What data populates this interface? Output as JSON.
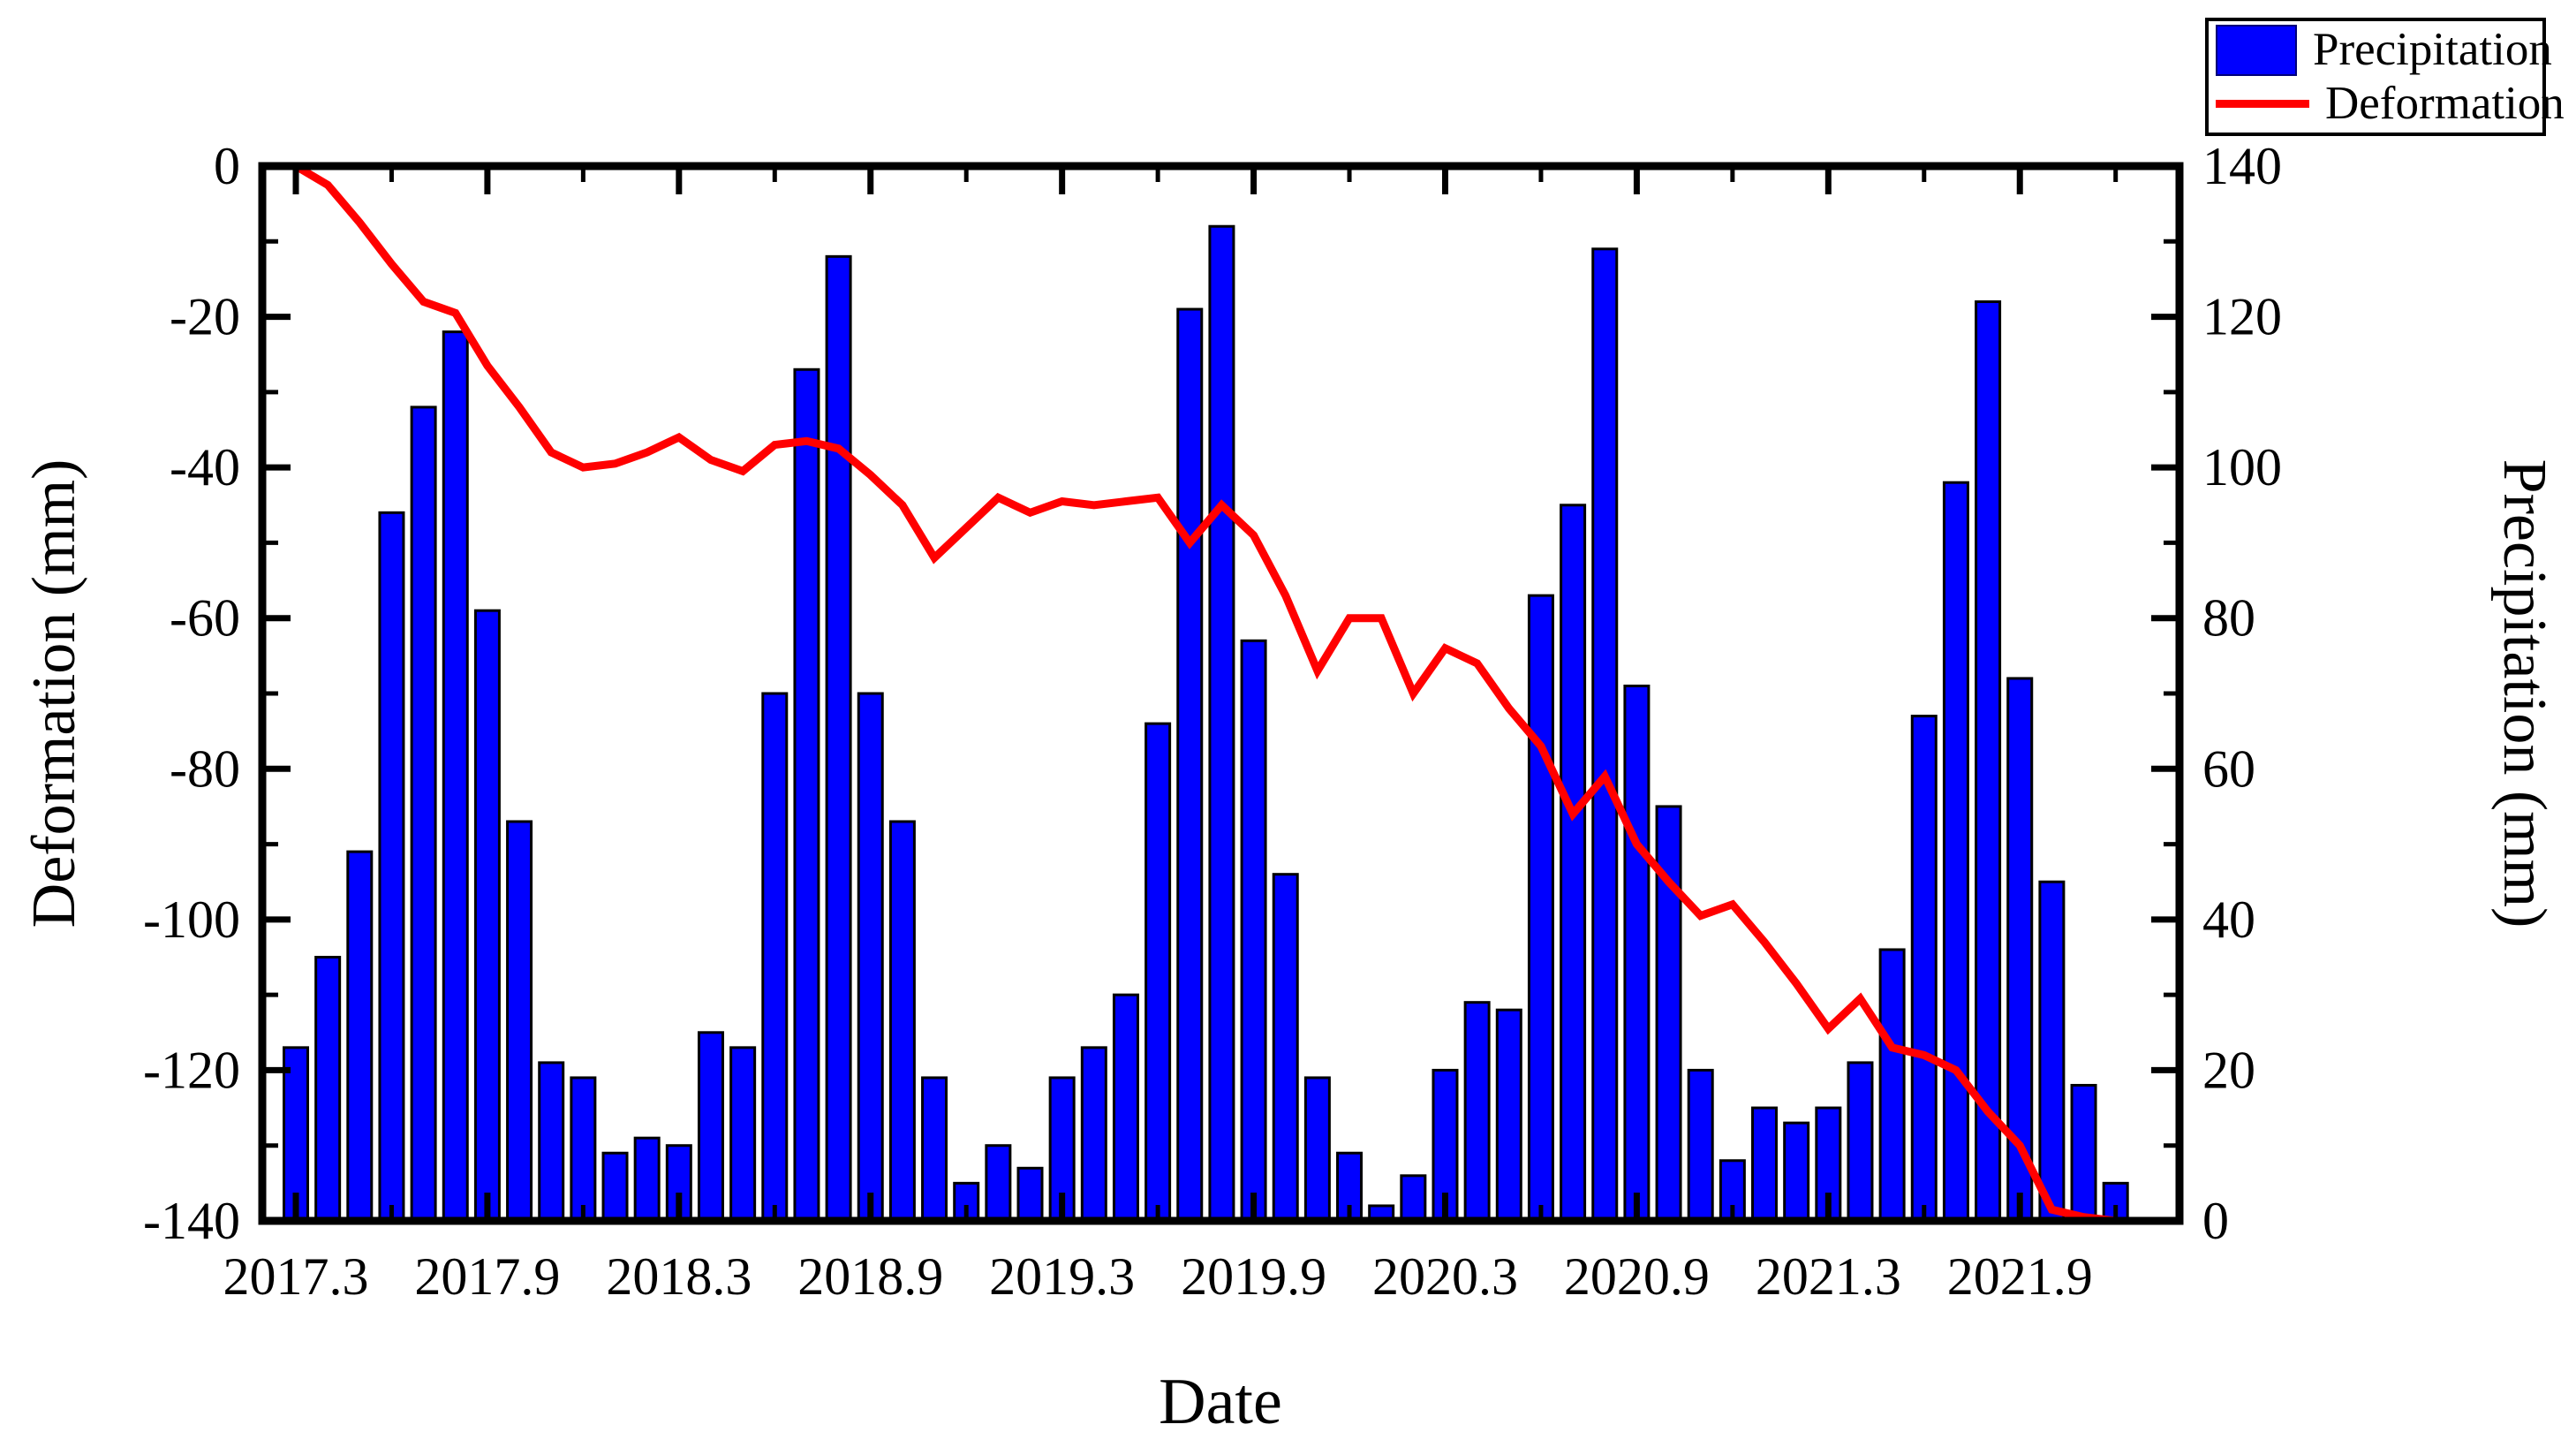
{
  "chart_data": {
    "type": "combo",
    "title": "",
    "months": [
      "2017.3",
      "2017.4",
      "2017.5",
      "2017.6",
      "2017.7",
      "2017.8",
      "2017.9",
      "2017.10",
      "2017.11",
      "2017.12",
      "2018.1",
      "2018.2",
      "2018.3",
      "2018.4",
      "2018.5",
      "2018.6",
      "2018.7",
      "2018.8",
      "2018.9",
      "2018.10",
      "2018.11",
      "2018.12",
      "2019.1",
      "2019.2",
      "2019.3",
      "2019.4",
      "2019.5",
      "2019.6",
      "2019.7",
      "2019.8",
      "2019.9",
      "2019.10",
      "2019.11",
      "2019.12",
      "2020.1",
      "2020.2",
      "2020.3",
      "2020.4",
      "2020.5",
      "2020.6",
      "2020.7",
      "2020.8",
      "2020.9",
      "2020.10",
      "2020.11",
      "2020.12",
      "2021.1",
      "2021.2",
      "2021.3",
      "2021.4",
      "2021.5",
      "2021.6",
      "2021.7",
      "2021.8",
      "2021.9",
      "2021.10",
      "2021.11",
      "2021.12",
      "2022.1",
      "2022.2"
    ],
    "series": [
      {
        "name": "Precipitation",
        "type": "bar",
        "axis": "right",
        "color": "#0000FF",
        "values": [
          23,
          35,
          49,
          94,
          108,
          118,
          81,
          53,
          21,
          19,
          9,
          11,
          10,
          25,
          23,
          70,
          113,
          128,
          70,
          53,
          19,
          5,
          10,
          7,
          19,
          23,
          30,
          66,
          121,
          132,
          77,
          46,
          19,
          9,
          2,
          6,
          20,
          29,
          28,
          83,
          95,
          129,
          71,
          55,
          20,
          8,
          15,
          13,
          15,
          21,
          36,
          67,
          98,
          122,
          72,
          45,
          18,
          5
        ]
      },
      {
        "name": "Deformation",
        "type": "line",
        "axis": "left",
        "color": "#FF0000",
        "values": [
          0,
          -2.5,
          -7.5,
          -13,
          -18,
          -19.5,
          -26.5,
          -32,
          -38,
          -40,
          -39.5,
          -38,
          -36,
          -39,
          -40.5,
          -37,
          -36.5,
          -37.5,
          -41,
          -45,
          -52,
          -48,
          -44,
          -46,
          -44.5,
          -45,
          -44.5,
          -44,
          -50,
          -45,
          -49,
          -57,
          -67,
          -60,
          -60,
          -70,
          -64,
          -66,
          -72,
          -77,
          -86,
          -81,
          -90,
          -95,
          -99.5,
          -98,
          -103,
          -108.5,
          -114.5,
          -110.5,
          -117,
          -118,
          -120,
          -125.5,
          -130,
          -138.5,
          -139.5,
          -140,
          -140,
          -140
        ]
      }
    ],
    "x_axis": {
      "label": "Date",
      "major_tick_labels": [
        "2017.3",
        "2017.9",
        "2018.3",
        "2018.9",
        "2019.3",
        "2019.9",
        "2020.3",
        "2020.9",
        "2021.3",
        "2021.9"
      ],
      "major_tick_month_indices": [
        0,
        6,
        12,
        18,
        24,
        30,
        36,
        42,
        48,
        54
      ],
      "minor_tick_month_indices": [
        3,
        9,
        15,
        21,
        27,
        33,
        39,
        45,
        51,
        57
      ]
    },
    "y_left_axis": {
      "label": "Deformation (mm)",
      "min": -140,
      "max": 0,
      "major_step": 20,
      "minor_step": 10,
      "tick_labels": [
        "0",
        "-20",
        "-40",
        "-60",
        "-80",
        "-100",
        "-120",
        "-140"
      ]
    },
    "y_right_axis": {
      "label": "Precipitation (mm)",
      "min": 0,
      "max": 140,
      "major_step": 20,
      "minor_step": 10,
      "tick_labels": [
        "140",
        "120",
        "100",
        "80",
        "60",
        "40",
        "20",
        "0"
      ]
    },
    "grid": false,
    "legend_position": "top-right"
  },
  "legend": {
    "items": [
      {
        "label": "Precipitation",
        "swatch": "rect",
        "color": "#0000FF"
      },
      {
        "label": "Deformation",
        "swatch": "line",
        "color": "#FF0000"
      }
    ]
  },
  "colors": {
    "bar_fill": "#0000FF",
    "bar_edge": "#000000",
    "line": "#FF0000",
    "axis": "#000000",
    "background": "#FFFFFF"
  }
}
